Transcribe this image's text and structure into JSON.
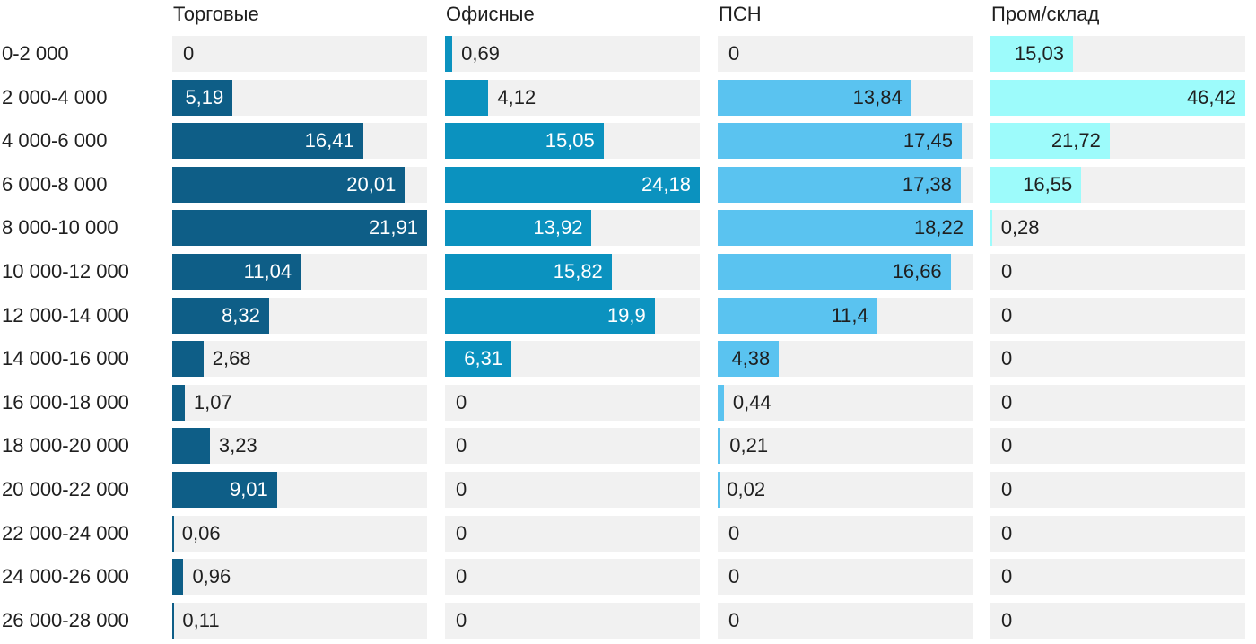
{
  "chart_data": {
    "type": "bar",
    "orientation": "horizontal",
    "title": "",
    "xlabel": "",
    "ylabel": "",
    "grid": false,
    "legend_position": "column-headers-top",
    "scaling": "each-column-scaled-to-its-own-max",
    "decimal_separator": ",",
    "track_color": "#f1f1f1",
    "text_color": "#1f1f1f",
    "categories": [
      "0-2 000",
      "2 000-4 000",
      "4 000-6 000",
      "6 000-8 000",
      "8 000-10 000",
      "10 000-12 000",
      "12 000-14 000",
      "14 000-16 000",
      "16 000-18 000",
      "18 000-20 000",
      "20 000-22 000",
      "22 000-24 000",
      "24 000-26 000",
      "26 000-28 000"
    ],
    "series": [
      {
        "name": "Торговые",
        "color": "#0e5e87",
        "inside_label_color": "#ffffff",
        "max": 21.91,
        "values": [
          0,
          5.19,
          16.41,
          20.01,
          21.91,
          11.04,
          8.32,
          2.68,
          1.07,
          3.23,
          9.01,
          0.06,
          0.96,
          0.11
        ]
      },
      {
        "name": "Офисные",
        "color": "#0b92bf",
        "inside_label_color": "#ffffff",
        "max": 24.18,
        "values": [
          0.69,
          4.12,
          15.05,
          24.18,
          13.92,
          15.82,
          19.9,
          6.31,
          0,
          0,
          0,
          0,
          0,
          0
        ]
      },
      {
        "name": "ПСН",
        "color": "#5ac3f0",
        "inside_label_color": "#1f1f1f",
        "max": 18.22,
        "values": [
          0,
          13.84,
          17.45,
          17.38,
          18.22,
          16.66,
          11.4,
          4.38,
          0.44,
          0.21,
          0.02,
          0,
          0,
          0
        ]
      },
      {
        "name": "Пром/склад",
        "color": "#9dfbfb",
        "inside_label_color": "#1f1f1f",
        "max": 46.42,
        "values": [
          15.03,
          46.42,
          21.72,
          16.55,
          0.28,
          0,
          0,
          0,
          0,
          0,
          0,
          0,
          0,
          0
        ]
      }
    ]
  }
}
